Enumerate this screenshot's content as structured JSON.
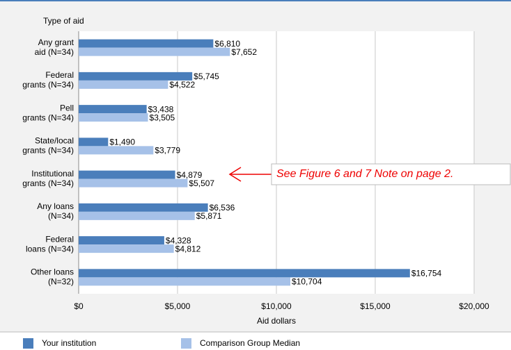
{
  "chart_data": {
    "type": "bar",
    "orientation": "horizontal",
    "y_axis_title": "Type of aid",
    "x_axis_title": "Aid dollars",
    "categories": [
      [
        "Any grant",
        "aid (N=34)"
      ],
      [
        "Federal",
        "grants (N=34)"
      ],
      [
        "Pell",
        "grants (N=34)"
      ],
      [
        "State/local",
        "grants (N=34)"
      ],
      [
        "Institutional",
        "grants (N=34)"
      ],
      [
        "Any loans",
        "(N=34)"
      ],
      [
        "Federal",
        "loans (N=34)"
      ],
      [
        "Other loans",
        "(N=32)"
      ]
    ],
    "series": [
      {
        "name": "Your institution",
        "color": "#4a7ebb",
        "values": [
          6810,
          5745,
          3438,
          1490,
          4879,
          6536,
          4328,
          16754
        ],
        "value_labels": [
          "$6,810",
          "$5,745",
          "$3,438",
          "$1,490",
          "$4,879",
          "$6,536",
          "$4,328",
          "$16,754"
        ]
      },
      {
        "name": "Comparison Group Median",
        "color": "#a6c1e8",
        "values": [
          7652,
          4522,
          3505,
          3779,
          5507,
          5871,
          4812,
          10704
        ],
        "value_labels": [
          "$7,652",
          "$4,522",
          "$3,505",
          "$3,779",
          "$5,507",
          "$5,871",
          "$4,812",
          "$10,704"
        ]
      }
    ],
    "xlim": [
      0,
      20000
    ],
    "xticks": [
      {
        "value": 0,
        "label": "$0"
      },
      {
        "value": 5000,
        "label": "$5,000"
      },
      {
        "value": 10000,
        "label": "$10,000"
      },
      {
        "value": 15000,
        "label": "$15,000"
      },
      {
        "value": 20000,
        "label": "$20,000"
      }
    ],
    "grid": true,
    "annotation": "See Figure 6 and 7 Note on page 2."
  }
}
